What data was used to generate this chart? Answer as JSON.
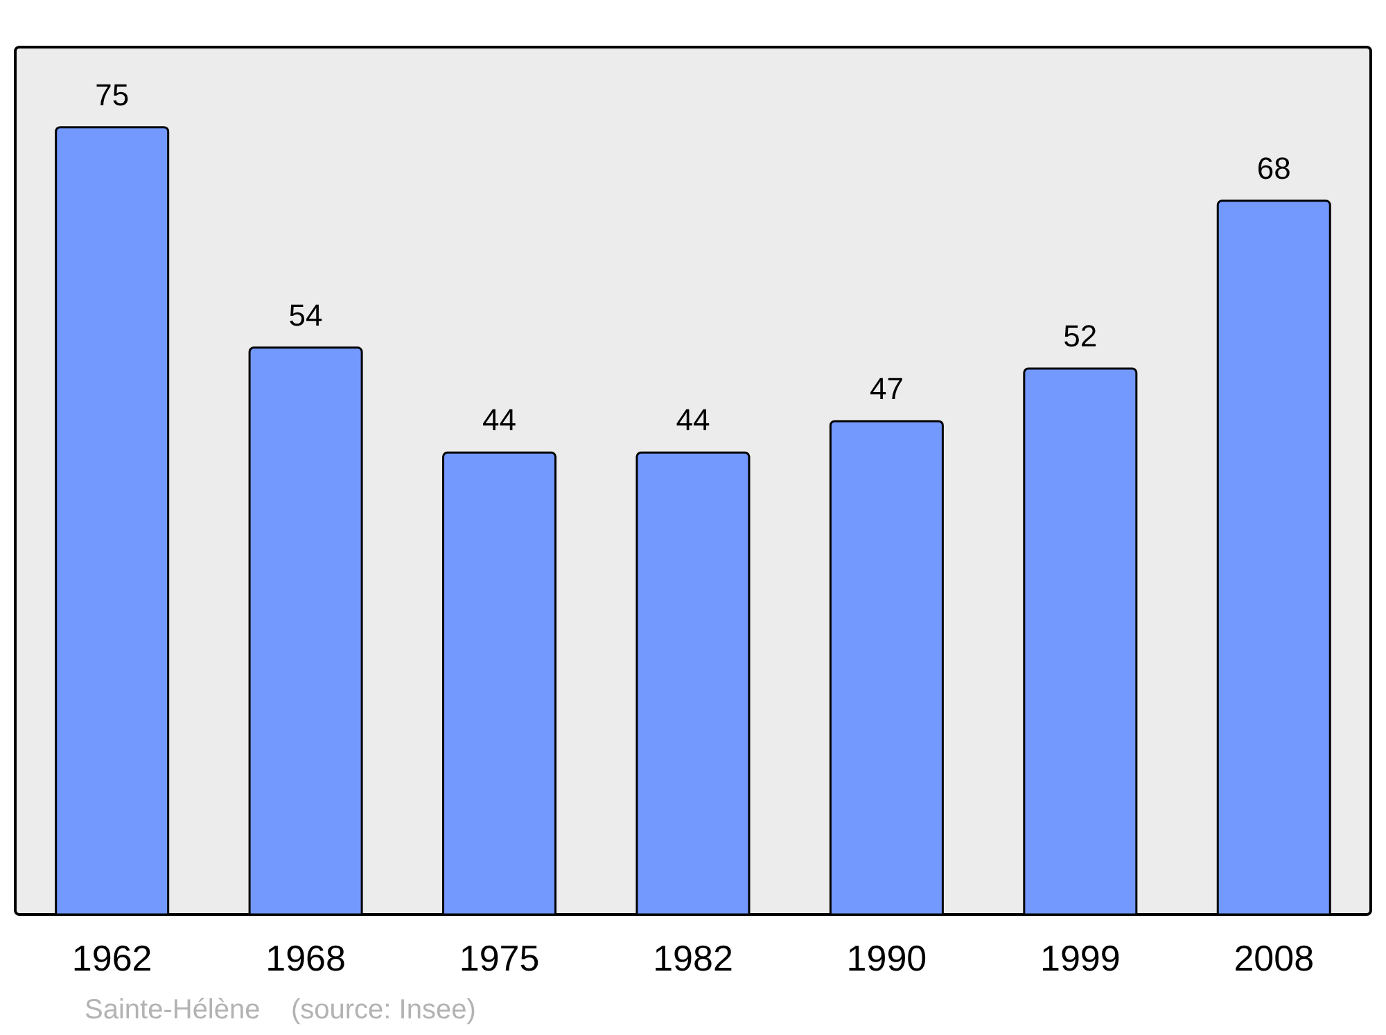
{
  "chart_data": {
    "type": "bar",
    "categories": [
      "1962",
      "1968",
      "1975",
      "1982",
      "1990",
      "1999",
      "2008"
    ],
    "values": [
      75,
      54,
      44,
      44,
      47,
      52,
      68
    ],
    "color": "#7399ff",
    "data_labels": true,
    "annotations": [
      "Sainte-Hélène    (source: Insee)"
    ]
  }
}
